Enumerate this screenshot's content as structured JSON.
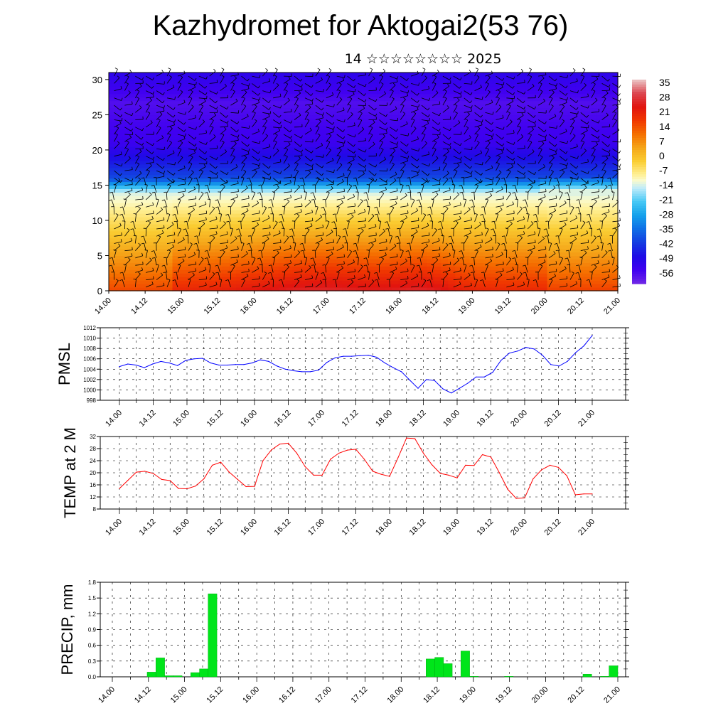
{
  "title": "Kazhydromet for Aktogai2(53 76)",
  "subtitle": "14 ☆☆☆☆☆☆☆☆ 2025",
  "colors": {
    "pmsl_line": "#0000ff",
    "temp_line": "#ff0000",
    "precip_bar": "#00e51a",
    "wind_barb": "#000000"
  },
  "chart_data": [
    {
      "id": "cross_section",
      "type": "heatmap",
      "variable": "temperature with wind barbs",
      "x_ticks": [
        "14.00",
        "14.12",
        "15.00",
        "15.12",
        "16.00",
        "16.12",
        "17.00",
        "17.12",
        "18.00",
        "18.12",
        "19.00",
        "19.12",
        "20.00",
        "20.12",
        "21.00"
      ],
      "ylim": [
        0,
        31
      ],
      "y_ticks": [
        0,
        5,
        10,
        15,
        20,
        25,
        30
      ],
      "colorbar_labels": [
        "35",
        "28",
        "21",
        "14",
        "7",
        "0",
        "-7",
        "-14",
        "-21",
        "-28",
        "-35",
        "-42",
        "-49",
        "-56"
      ],
      "colorbar_range": [
        -63,
        42
      ]
    },
    {
      "id": "pmsl",
      "type": "line",
      "ylabel": "PMSL",
      "ylim": [
        998,
        1012
      ],
      "y_ticks": [
        998,
        1000,
        1002,
        1004,
        1006,
        1008,
        1010,
        1012
      ],
      "x_ticks": [
        "14.00",
        "14.12",
        "15.00",
        "15.12",
        "16.00",
        "16.12",
        "17.00",
        "17.12",
        "18.00",
        "18.12",
        "19.00",
        "19.12",
        "20.00",
        "20.12",
        "21.00"
      ],
      "series": [
        {
          "values": [
            1004.5,
            1005.0,
            1004.8,
            1004.3,
            1005.0,
            1005.5,
            1005.2,
            1004.7,
            1005.7,
            1006.0,
            1006.1,
            1005.2,
            1004.8,
            1004.8,
            1004.9,
            1004.9,
            1005.2,
            1005.8,
            1005.5,
            1004.6,
            1004.0,
            1003.7,
            1003.5,
            1003.5,
            1003.8,
            1005.3,
            1006.2,
            1006.5,
            1006.5,
            1006.6,
            1006.7,
            1006.3,
            1005.2,
            1004.3,
            1003.5,
            1001.9,
            1000.3,
            1002.0,
            1001.8,
            1000.2,
            999.4,
            1000.3,
            1001.3,
            1002.5,
            1002.5,
            1003.4,
            1005.7,
            1007.1,
            1007.5,
            1008.2,
            1007.9,
            1006.7,
            1004.9,
            1004.6,
            1005.5,
            1007.2,
            1008.5,
            1010.5
          ]
        }
      ]
    },
    {
      "id": "temp2m",
      "type": "line",
      "ylabel": "TEMP at 2 M",
      "ylim": [
        8,
        32
      ],
      "y_ticks": [
        8,
        12,
        16,
        20,
        24,
        28,
        32
      ],
      "x_ticks": [
        "14.00",
        "14.12",
        "15.00",
        "15.12",
        "16.00",
        "16.12",
        "17.00",
        "17.12",
        "18.00",
        "18.12",
        "19.00",
        "19.12",
        "20.00",
        "20.12",
        "21.00"
      ],
      "series": [
        {
          "values": [
            14.8,
            17.5,
            20.2,
            20.5,
            19.8,
            17.8,
            17.4,
            14.8,
            14.7,
            15.6,
            18.0,
            22.5,
            23.5,
            20.2,
            17.8,
            15.4,
            15.5,
            24.0,
            27.6,
            29.5,
            29.8,
            26.5,
            22.0,
            19.2,
            19.2,
            24.5,
            26.5,
            27.5,
            27.8,
            24.5,
            20.5,
            19.5,
            18.8,
            25.0,
            31.5,
            31.3,
            26.5,
            22.7,
            19.8,
            19.2,
            18.3,
            22.5,
            22.4,
            26.0,
            25.2,
            20.0,
            14.5,
            11.5,
            11.7,
            18.0,
            21.0,
            22.5,
            21.8,
            19.0,
            12.7,
            13.0,
            13.0
          ]
        }
      ]
    },
    {
      "id": "precip",
      "type": "bar",
      "ylabel": "PRECIP, mm",
      "ylim": [
        0,
        1.8
      ],
      "y_ticks": [
        "0.0",
        "0.3",
        "0.6",
        "0.9",
        "1.2",
        "1.5",
        "1.8"
      ],
      "x_ticks": [
        "14.00",
        "14.12",
        "15.00",
        "15.12",
        "16.00",
        "16.12",
        "17.00",
        "17.12",
        "18.00",
        "18.12",
        "19.00",
        "19.12",
        "20.00",
        "20.12",
        "21.00"
      ],
      "values": [
        0,
        0,
        0,
        0,
        0.09,
        0.36,
        0.02,
        0.02,
        0,
        0.08,
        0.15,
        1.58,
        0,
        0,
        0,
        0,
        0,
        0,
        0,
        0,
        0,
        0,
        0,
        0,
        0,
        0,
        0,
        0,
        0,
        0,
        0,
        0,
        0,
        0,
        0,
        0,
        0.34,
        0.37,
        0.25,
        0,
        0.49,
        0.01,
        0,
        0,
        0,
        0.01,
        0,
        0,
        0,
        0,
        0,
        0,
        0,
        0,
        0.05,
        0,
        0.01,
        0.21
      ]
    }
  ]
}
